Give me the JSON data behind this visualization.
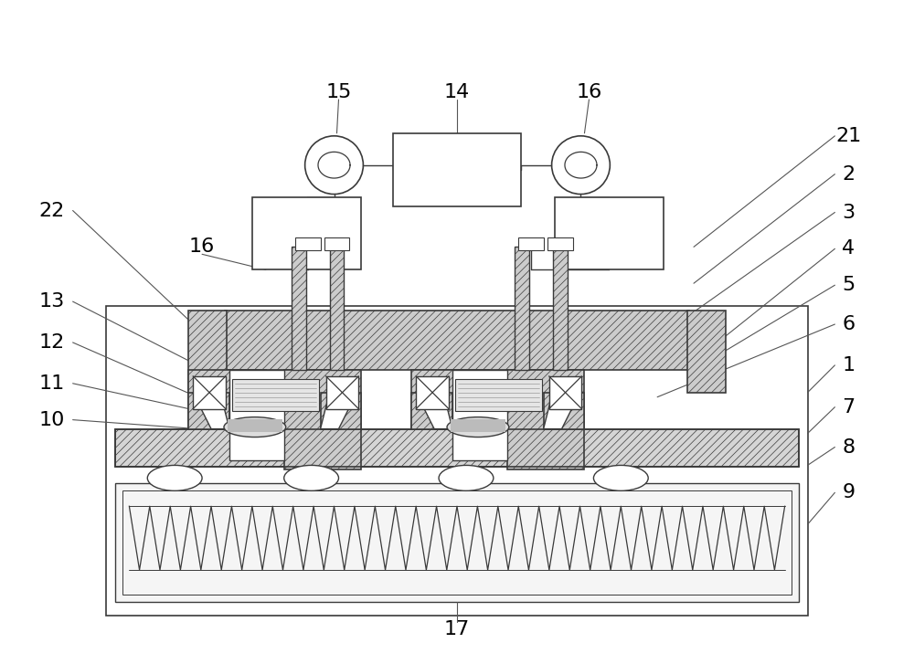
{
  "bg_color": "#ffffff",
  "lc": "#3a3a3a",
  "lw": 1.0,
  "fs": 16
}
